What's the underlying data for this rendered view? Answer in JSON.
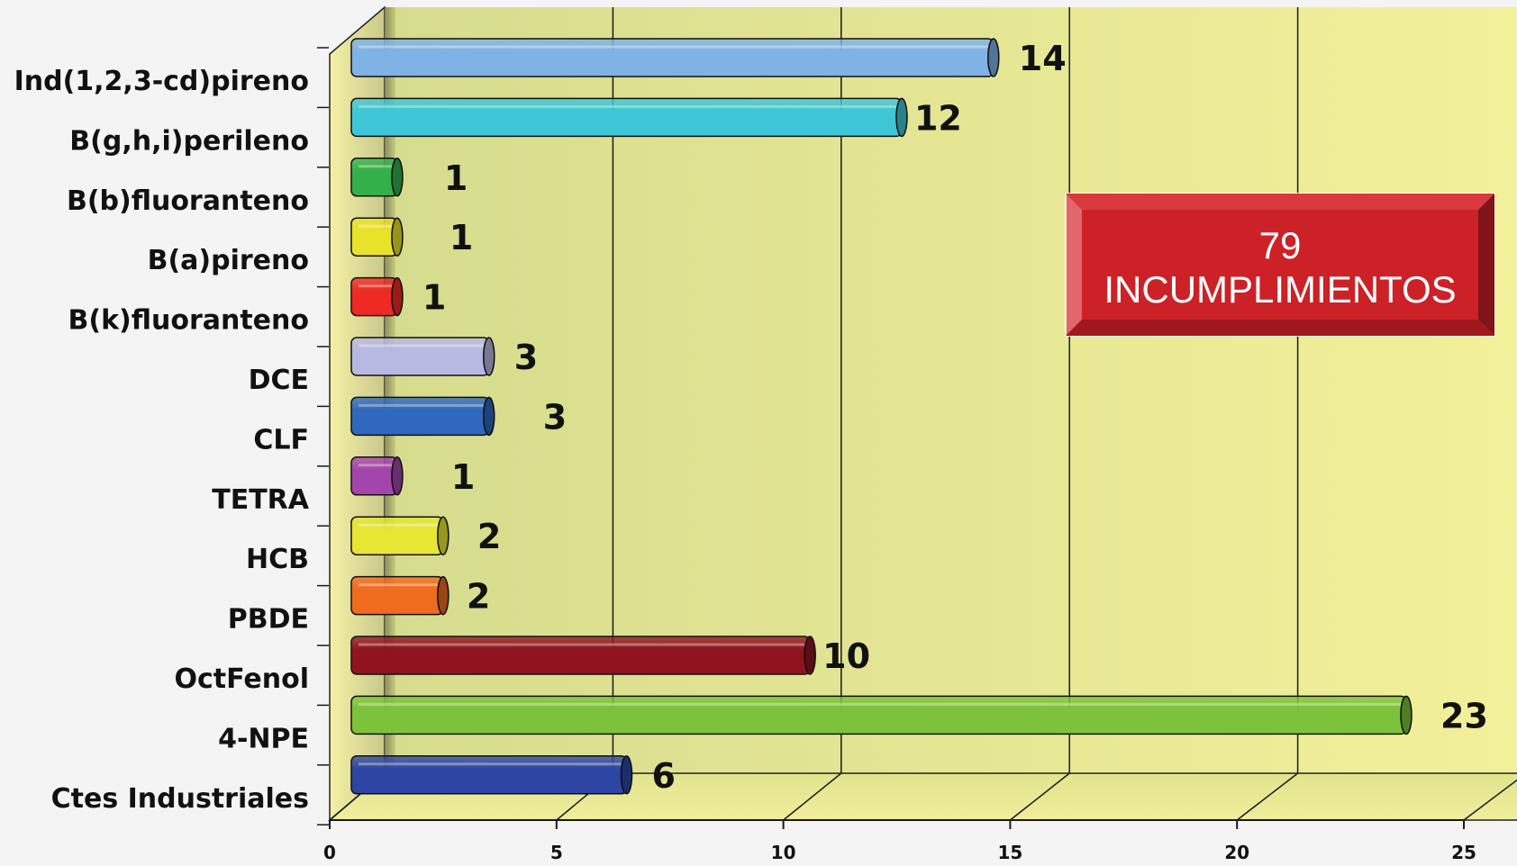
{
  "chart_data": {
    "type": "bar",
    "orientation": "horizontal",
    "categories": [
      "Ind(1,2,3-cd)pireno",
      "B(g,h,i)perileno",
      "B(b)fluoranteno",
      "B(a)pireno",
      "B(k)fluoranteno",
      "DCE",
      "CLF",
      "TETRA",
      "HCB",
      "PBDE",
      "OctFenol",
      "4-NPE",
      "Ctes Industriales"
    ],
    "values": [
      14,
      12,
      1,
      1,
      1,
      3,
      3,
      1,
      2,
      2,
      10,
      23,
      6
    ],
    "value_labels": [
      "14",
      "12",
      "1",
      "1",
      "1",
      "3",
      "3",
      "1",
      "2",
      "2",
      "10",
      "23",
      "6"
    ],
    "colors": [
      "#7fb2e5",
      "#3fc6d6",
      "#34b04a",
      "#e8e22a",
      "#ee2a24",
      "#b8b9e2",
      "#2f68bd",
      "#a445ac",
      "#e6e633",
      "#ef6b1e",
      "#8f1420",
      "#7cc23a",
      "#2d45a3"
    ],
    "xlim": [
      0,
      25
    ],
    "xticks": [
      "0",
      "5",
      "10",
      "15",
      "20",
      "25"
    ],
    "grid": true,
    "title": "",
    "xlabel": "",
    "ylabel": "",
    "callout": {
      "line1": "79",
      "line2": "INCUMPLIMIENTOS",
      "color": "#cc2127"
    }
  }
}
